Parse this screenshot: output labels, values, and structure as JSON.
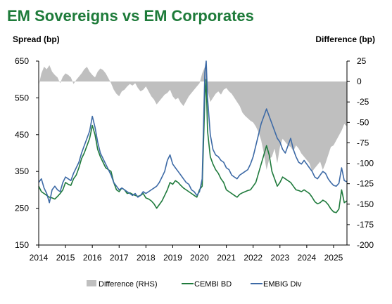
{
  "chart_data": {
    "type": "line",
    "title": "EM Sovereigns vs EM Corporates",
    "ylabel": "Spread (bp)",
    "y2label": "Difference (bp)",
    "ylim": [
      150,
      650
    ],
    "y2lim": [
      -200,
      25
    ],
    "yticks": [
      150,
      250,
      350,
      450,
      550,
      650
    ],
    "y2ticks": [
      25,
      0,
      -25,
      -50,
      -75,
      -100,
      -125,
      -150,
      -175,
      -200
    ],
    "xlim": [
      2014.0,
      2025.5
    ],
    "xticks": [
      "2014",
      "2015",
      "2016",
      "2017",
      "2018",
      "2019",
      "2020",
      "2021",
      "2022",
      "2023",
      "2024",
      "2025"
    ],
    "grid": false,
    "legend_position": "bottom",
    "colors": {
      "title": "#1e7b3a",
      "difference": "#bfbfbf",
      "cembi": "#1f7a3c",
      "embig": "#3d6aa6"
    },
    "series": [
      {
        "name": "Difference (RHS)",
        "axis": "right",
        "kind": "area",
        "x": [
          2014.0,
          2014.1,
          2014.2,
          2014.3,
          2014.4,
          2014.5,
          2014.6,
          2014.7,
          2014.8,
          2014.9,
          2015.0,
          2015.1,
          2015.2,
          2015.3,
          2015.4,
          2015.5,
          2015.6,
          2015.7,
          2015.8,
          2015.9,
          2016.0,
          2016.1,
          2016.2,
          2016.3,
          2016.4,
          2016.5,
          2016.6,
          2016.7,
          2016.8,
          2016.9,
          2017.0,
          2017.1,
          2017.2,
          2017.3,
          2017.4,
          2017.5,
          2017.6,
          2017.7,
          2017.8,
          2017.9,
          2018.0,
          2018.1,
          2018.2,
          2018.3,
          2018.4,
          2018.5,
          2018.6,
          2018.7,
          2018.8,
          2018.9,
          2019.0,
          2019.1,
          2019.2,
          2019.3,
          2019.4,
          2019.5,
          2019.6,
          2019.7,
          2019.8,
          2019.9,
          2020.0,
          2020.1,
          2020.2,
          2020.25,
          2020.3,
          2020.4,
          2020.5,
          2020.6,
          2020.7,
          2020.8,
          2020.9,
          2021.0,
          2021.1,
          2021.2,
          2021.3,
          2021.4,
          2021.5,
          2021.6,
          2021.7,
          2021.8,
          2021.9,
          2022.0,
          2022.1,
          2022.2,
          2022.3,
          2022.4,
          2022.5,
          2022.6,
          2022.7,
          2022.8,
          2022.9,
          2023.0,
          2023.1,
          2023.2,
          2023.3,
          2023.4,
          2023.5,
          2023.6,
          2023.7,
          2023.8,
          2023.9,
          2024.0,
          2024.1,
          2024.2,
          2024.3,
          2024.4,
          2024.5,
          2024.6,
          2024.7,
          2024.8,
          2024.9,
          2025.0,
          2025.1,
          2025.2,
          2025.3,
          2025.4,
          2025.5
        ],
        "values": [
          -5,
          10,
          18,
          15,
          20,
          12,
          8,
          5,
          -2,
          6,
          10,
          8,
          5,
          -3,
          2,
          6,
          10,
          15,
          18,
          12,
          8,
          5,
          12,
          16,
          14,
          10,
          4,
          -2,
          -10,
          -15,
          -18,
          -12,
          -10,
          -6,
          -3,
          -5,
          -2,
          -8,
          -12,
          -10,
          -6,
          -12,
          -18,
          -22,
          -28,
          -24,
          -20,
          -16,
          -14,
          -10,
          -18,
          -22,
          -20,
          -26,
          -30,
          -24,
          -18,
          -14,
          -10,
          -6,
          -2,
          10,
          18,
          20,
          -10,
          -25,
          -20,
          -15,
          -12,
          -16,
          -10,
          -8,
          -12,
          -15,
          -20,
          -25,
          -30,
          -38,
          -42,
          -45,
          -48,
          -50,
          -55,
          -62,
          -72,
          -88,
          -108,
          -95,
          -92,
          -82,
          -100,
          -80,
          -70,
          -74,
          -78,
          -80,
          -85,
          -78,
          -82,
          -88,
          -92,
          -96,
          -100,
          -110,
          -106,
          -102,
          -98,
          -108,
          -100,
          -90,
          -80,
          -78,
          -72,
          -66,
          -60,
          -52,
          -55
        ]
      },
      {
        "name": "CEMBI BD",
        "axis": "left",
        "kind": "line",
        "x": [
          2014.0,
          2014.1,
          2014.2,
          2014.3,
          2014.4,
          2014.5,
          2014.6,
          2014.7,
          2014.8,
          2014.9,
          2015.0,
          2015.1,
          2015.2,
          2015.3,
          2015.4,
          2015.5,
          2015.6,
          2015.7,
          2015.8,
          2015.9,
          2016.0,
          2016.1,
          2016.2,
          2016.3,
          2016.4,
          2016.5,
          2016.6,
          2016.7,
          2016.8,
          2016.9,
          2017.0,
          2017.1,
          2017.2,
          2017.3,
          2017.4,
          2017.5,
          2017.6,
          2017.7,
          2017.8,
          2017.9,
          2018.0,
          2018.1,
          2018.2,
          2018.3,
          2018.4,
          2018.5,
          2018.6,
          2018.7,
          2018.8,
          2018.9,
          2019.0,
          2019.1,
          2019.2,
          2019.3,
          2019.4,
          2019.5,
          2019.6,
          2019.7,
          2019.8,
          2019.9,
          2020.0,
          2020.1,
          2020.2,
          2020.25,
          2020.3,
          2020.4,
          2020.5,
          2020.6,
          2020.7,
          2020.8,
          2020.9,
          2021.0,
          2021.1,
          2021.2,
          2021.3,
          2021.4,
          2021.5,
          2021.6,
          2021.7,
          2021.8,
          2021.9,
          2022.0,
          2022.1,
          2022.2,
          2022.3,
          2022.4,
          2022.5,
          2022.6,
          2022.7,
          2022.8,
          2022.9,
          2023.0,
          2023.1,
          2023.2,
          2023.3,
          2023.4,
          2023.5,
          2023.6,
          2023.7,
          2023.8,
          2023.9,
          2024.0,
          2024.1,
          2024.2,
          2024.3,
          2024.4,
          2024.5,
          2024.6,
          2024.7,
          2024.8,
          2024.9,
          2025.0,
          2025.1,
          2025.2,
          2025.3,
          2025.4,
          2025.5
        ],
        "values": [
          310,
          295,
          290,
          285,
          280,
          278,
          275,
          282,
          290,
          300,
          320,
          315,
          312,
          330,
          340,
          360,
          385,
          400,
          420,
          440,
          475,
          450,
          410,
          390,
          375,
          360,
          355,
          350,
          320,
          300,
          295,
          305,
          300,
          290,
          292,
          288,
          285,
          282,
          285,
          290,
          278,
          275,
          270,
          262,
          250,
          260,
          270,
          285,
          300,
          320,
          315,
          325,
          320,
          312,
          305,
          300,
          295,
          290,
          285,
          280,
          300,
          310,
          550,
          600,
          460,
          390,
          370,
          355,
          345,
          330,
          320,
          300,
          295,
          290,
          285,
          280,
          288,
          292,
          295,
          298,
          300,
          310,
          320,
          345,
          370,
          395,
          420,
          395,
          350,
          330,
          310,
          320,
          335,
          330,
          325,
          320,
          310,
          300,
          298,
          295,
          300,
          295,
          290,
          280,
          268,
          262,
          265,
          272,
          268,
          260,
          248,
          240,
          238,
          248,
          300,
          265,
          270
        ]
      },
      {
        "name": "EMBIG Div",
        "axis": "left",
        "kind": "line",
        "x": [
          2014.0,
          2014.1,
          2014.2,
          2014.3,
          2014.4,
          2014.5,
          2014.6,
          2014.7,
          2014.8,
          2014.9,
          2015.0,
          2015.1,
          2015.2,
          2015.3,
          2015.4,
          2015.5,
          2015.6,
          2015.7,
          2015.8,
          2015.9,
          2016.0,
          2016.1,
          2016.2,
          2016.3,
          2016.4,
          2016.5,
          2016.6,
          2016.7,
          2016.8,
          2016.9,
          2017.0,
          2017.1,
          2017.2,
          2017.3,
          2017.4,
          2017.5,
          2017.6,
          2017.7,
          2017.8,
          2017.9,
          2018.0,
          2018.1,
          2018.2,
          2018.3,
          2018.4,
          2018.5,
          2018.6,
          2018.7,
          2018.8,
          2018.9,
          2019.0,
          2019.1,
          2019.2,
          2019.3,
          2019.4,
          2019.5,
          2019.6,
          2019.7,
          2019.8,
          2019.9,
          2020.0,
          2020.1,
          2020.2,
          2020.25,
          2020.3,
          2020.4,
          2020.5,
          2020.6,
          2020.7,
          2020.8,
          2020.9,
          2021.0,
          2021.1,
          2021.2,
          2021.3,
          2021.4,
          2021.5,
          2021.6,
          2021.7,
          2021.8,
          2021.9,
          2022.0,
          2022.1,
          2022.2,
          2022.3,
          2022.4,
          2022.5,
          2022.6,
          2022.7,
          2022.8,
          2022.9,
          2023.0,
          2023.1,
          2023.2,
          2023.3,
          2023.4,
          2023.5,
          2023.6,
          2023.7,
          2023.8,
          2023.9,
          2024.0,
          2024.1,
          2024.2,
          2024.3,
          2024.4,
          2024.5,
          2024.6,
          2024.7,
          2024.8,
          2024.9,
          2025.0,
          2025.1,
          2025.2,
          2025.3,
          2025.4,
          2025.5
        ],
        "values": [
          320,
          330,
          305,
          290,
          265,
          300,
          310,
          300,
          295,
          320,
          335,
          330,
          325,
          345,
          360,
          375,
          400,
          420,
          440,
          460,
          500,
          470,
          430,
          400,
          385,
          370,
          355,
          340,
          320,
          310,
          300,
          305,
          300,
          295,
          290,
          285,
          290,
          280,
          285,
          295,
          290,
          295,
          300,
          305,
          310,
          320,
          335,
          350,
          380,
          395,
          370,
          360,
          350,
          340,
          330,
          320,
          315,
          300,
          295,
          285,
          295,
          330,
          620,
          650,
          550,
          450,
          410,
          395,
          390,
          380,
          375,
          360,
          355,
          340,
          335,
          330,
          340,
          345,
          350,
          355,
          370,
          390,
          420,
          450,
          480,
          500,
          520,
          500,
          480,
          460,
          440,
          430,
          410,
          400,
          420,
          440,
          410,
          390,
          375,
          370,
          380,
          370,
          360,
          350,
          335,
          330,
          340,
          350,
          345,
          330,
          320,
          312,
          310,
          318,
          360,
          325,
          322
        ]
      }
    ]
  }
}
